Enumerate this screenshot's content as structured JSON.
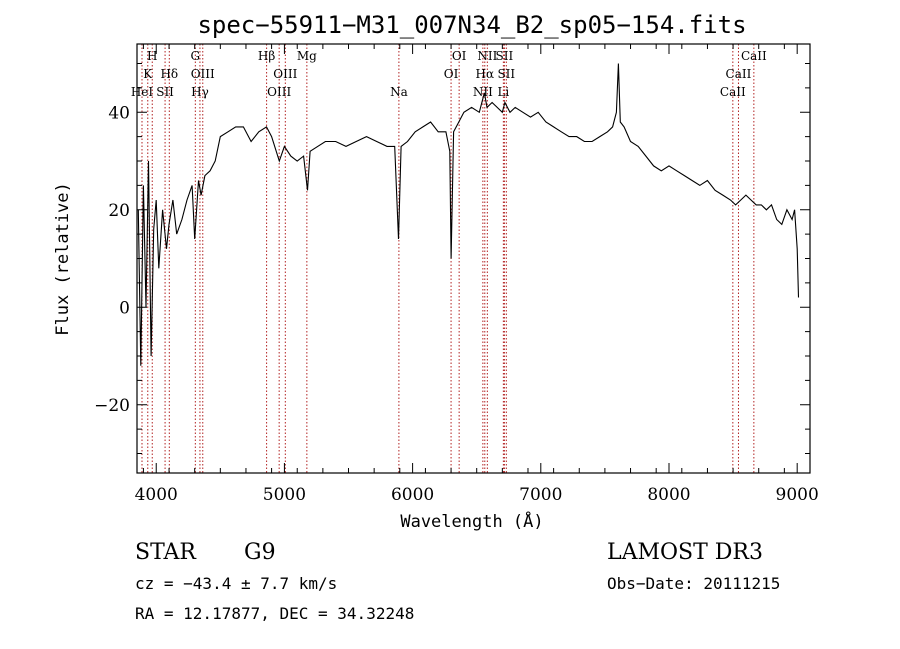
{
  "chart_data": {
    "type": "line",
    "title": "spec−55911−M31_007N34_B2_sp05−154.fits",
    "xlabel": "Wavelength (Å)",
    "ylabel": "Flux (relative)",
    "xlim": [
      3850,
      9100
    ],
    "ylim": [
      -34,
      54
    ],
    "x_ticks": [
      4000,
      5000,
      6000,
      7000,
      8000,
      9000
    ],
    "x_tick_labels": [
      "4000",
      "5000",
      "6000",
      "7000",
      "8000",
      "9000"
    ],
    "y_ticks": [
      -20,
      0,
      20,
      40
    ],
    "y_tick_labels": [
      "−20",
      "0",
      "20",
      "40"
    ],
    "series": [
      {
        "name": "flux",
        "x": [
          3860,
          3880,
          3900,
          3920,
          3940,
          3960,
          3980,
          4000,
          4020,
          4050,
          4080,
          4100,
          4130,
          4160,
          4200,
          4240,
          4280,
          4300,
          4330,
          4350,
          4380,
          4420,
          4460,
          4500,
          4560,
          4620,
          4680,
          4740,
          4800,
          4860,
          4900,
          4960,
          5000,
          5050,
          5100,
          5150,
          5180,
          5200,
          5260,
          5320,
          5400,
          5480,
          5560,
          5640,
          5720,
          5800,
          5860,
          5890,
          5910,
          5960,
          6020,
          6080,
          6140,
          6200,
          6260,
          6290,
          6300,
          6320,
          6360,
          6400,
          6460,
          6520,
          6560,
          6580,
          6620,
          6660,
          6700,
          6720,
          6760,
          6800,
          6860,
          6920,
          6980,
          7040,
          7100,
          7160,
          7220,
          7280,
          7340,
          7400,
          7460,
          7520,
          7560,
          7590,
          7605,
          7620,
          7650,
          7700,
          7760,
          7820,
          7880,
          7940,
          8000,
          8060,
          8120,
          8180,
          8240,
          8300,
          8360,
          8420,
          8480,
          8520,
          8560,
          8600,
          8640,
          8680,
          8720,
          8760,
          8800,
          8840,
          8880,
          8920,
          8960,
          8980,
          9000,
          9010
        ],
        "y": [
          20,
          -12,
          25,
          0,
          30,
          -10,
          16,
          22,
          8,
          20,
          12,
          17,
          22,
          15,
          18,
          22,
          25,
          14,
          26,
          23,
          27,
          28,
          30,
          35,
          36,
          37,
          37,
          34,
          36,
          37,
          35,
          30,
          33,
          31,
          30,
          31,
          24,
          32,
          33,
          34,
          34,
          33,
          34,
          35,
          34,
          33,
          33,
          14,
          33,
          34,
          36,
          37,
          38,
          36,
          36,
          32,
          10,
          36,
          38,
          40,
          41,
          40,
          44,
          41,
          42,
          41,
          40,
          42,
          40,
          41,
          40,
          39,
          40,
          38,
          37,
          36,
          35,
          35,
          34,
          34,
          35,
          36,
          37,
          40,
          50,
          38,
          37,
          34,
          33,
          31,
          29,
          28,
          29,
          28,
          27,
          26,
          25,
          26,
          24,
          23,
          22,
          21,
          22,
          23,
          22,
          21,
          21,
          20,
          21,
          18,
          17,
          20,
          18,
          20,
          12,
          2
        ]
      }
    ],
    "spectral_lines": [
      {
        "name": "H",
        "wavelength": 3969,
        "row": 0
      },
      {
        "name": "K",
        "wavelength": 3934,
        "row": 1
      },
      {
        "name": "HeI",
        "wavelength": 3889,
        "row": 2
      },
      {
        "name": "SII",
        "wavelength": 4069,
        "row": 2
      },
      {
        "name": "Hδ",
        "wavelength": 4102,
        "row": 1
      },
      {
        "name": "G",
        "wavelength": 4305,
        "row": 0
      },
      {
        "name": "OIII",
        "wavelength": 4363,
        "row": 1
      },
      {
        "name": "Hγ",
        "wavelength": 4341,
        "row": 2
      },
      {
        "name": "Hβ",
        "wavelength": 4861,
        "row": 0
      },
      {
        "name": "OIII",
        "wavelength": 5007,
        "row": 1
      },
      {
        "name": "OIII",
        "wavelength": 4959,
        "row": 2
      },
      {
        "name": "Mg",
        "wavelength": 5175,
        "row": 0
      },
      {
        "name": "Na",
        "wavelength": 5893,
        "row": 2
      },
      {
        "name": "OI",
        "wavelength": 6363,
        "row": 0
      },
      {
        "name": "OI",
        "wavelength": 6300,
        "row": 1
      },
      {
        "name": "NII",
        "wavelength": 6583,
        "row": 0
      },
      {
        "name": "SII",
        "wavelength": 6716,
        "row": 0
      },
      {
        "name": "Hα",
        "wavelength": 6563,
        "row": 1
      },
      {
        "name": "SII",
        "wavelength": 6731,
        "row": 1
      },
      {
        "name": "NII",
        "wavelength": 6548,
        "row": 2
      },
      {
        "name": "Li",
        "wavelength": 6708,
        "row": 2
      },
      {
        "name": "CaII",
        "wavelength": 8662,
        "row": 0
      },
      {
        "name": "CaII",
        "wavelength": 8542,
        "row": 1
      },
      {
        "name": "CaII",
        "wavelength": 8498,
        "row": 2
      }
    ],
    "line_color": "#b22222",
    "flux_color": "#000000"
  },
  "info": {
    "class": "STAR",
    "subclass": "G9",
    "survey": "LAMOST DR3",
    "cz": "cz = −43.4 ± 7.7 km/s",
    "obs_date": "Obs−Date: 20111215",
    "radec": "RA =  12.17877, DEC =  34.32248"
  }
}
